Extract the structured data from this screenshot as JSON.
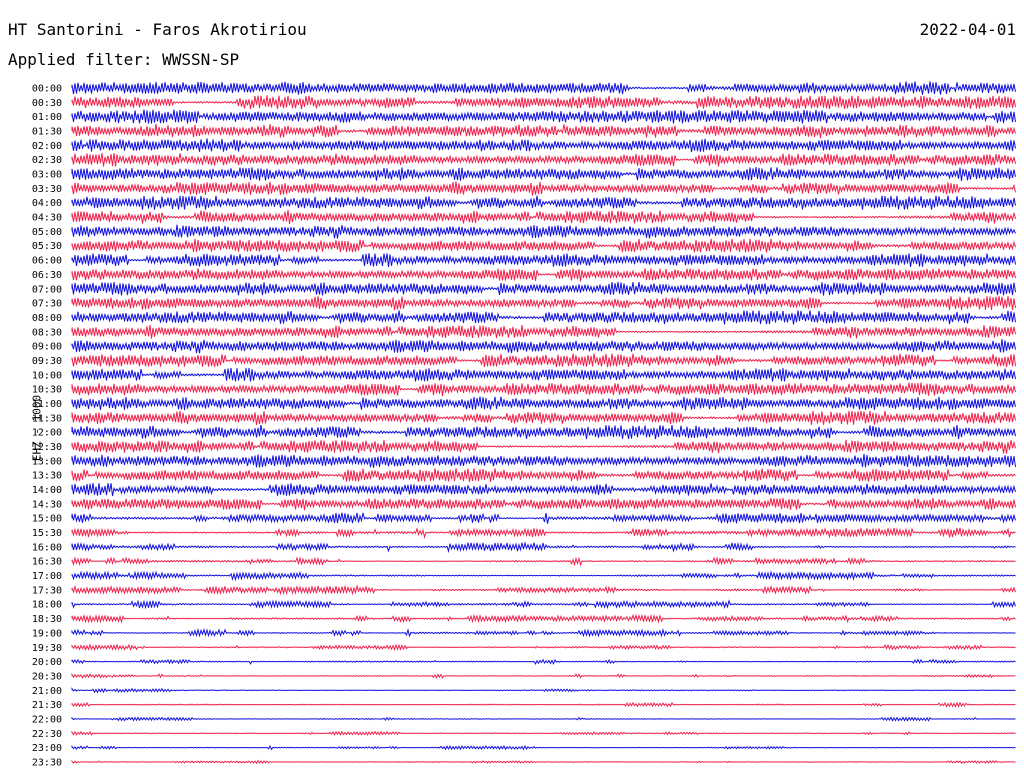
{
  "header": {
    "station": "HT Santorini - Faros Akrotiriou",
    "date": "2022-04-01",
    "filter": "Applied filter: WWSSN-SP",
    "channel": "EHZ - 1000"
  },
  "colors": {
    "even_rows": "#1010e0",
    "odd_rows": "#f0204a"
  },
  "chart_data": {
    "type": "line",
    "title": "HT Santorini - Faros Akrotiriou",
    "subtitle": "Applied filter: WWSSN-SP",
    "ylabel": "EHZ - 1000",
    "rows": [
      "00:00",
      "00:30",
      "01:00",
      "01:30",
      "02:00",
      "02:30",
      "03:00",
      "03:30",
      "04:00",
      "04:30",
      "05:00",
      "05:30",
      "06:00",
      "06:30",
      "07:00",
      "07:30",
      "08:00",
      "08:30",
      "09:00",
      "09:30",
      "10:00",
      "10:30",
      "11:00",
      "11:30",
      "12:00",
      "12:30",
      "13:00",
      "13:30",
      "14:00",
      "14:30",
      "15:00",
      "15:30",
      "16:00",
      "16:30",
      "17:00",
      "17:30",
      "18:00",
      "18:30",
      "19:00",
      "19:30",
      "20:00",
      "20:30",
      "21:00",
      "21:30",
      "22:00",
      "22:30",
      "23:00",
      "23:30"
    ],
    "row_amplitude": [
      1.0,
      1.0,
      1.0,
      1.0,
      1.0,
      1.0,
      1.0,
      1.0,
      1.0,
      1.0,
      1.0,
      1.0,
      1.0,
      1.0,
      1.0,
      1.0,
      1.0,
      1.0,
      1.0,
      1.0,
      1.0,
      1.0,
      1.0,
      1.0,
      1.0,
      1.0,
      1.0,
      1.0,
      0.95,
      0.9,
      0.8,
      0.75,
      0.6,
      0.55,
      0.55,
      0.55,
      0.55,
      0.5,
      0.45,
      0.4,
      0.35,
      0.3,
      0.3,
      0.3,
      0.28,
      0.28,
      0.25,
      0.22
    ],
    "row_burstiness": [
      0.1,
      0.1,
      0.1,
      0.1,
      0.1,
      0.1,
      0.1,
      0.1,
      0.1,
      0.1,
      0.1,
      0.1,
      0.1,
      0.1,
      0.1,
      0.1,
      0.1,
      0.1,
      0.1,
      0.1,
      0.1,
      0.1,
      0.1,
      0.1,
      0.1,
      0.1,
      0.1,
      0.1,
      0.2,
      0.25,
      0.35,
      0.4,
      0.55,
      0.6,
      0.6,
      0.6,
      0.6,
      0.65,
      0.65,
      0.7,
      0.75,
      0.8,
      0.8,
      0.8,
      0.8,
      0.8,
      0.8,
      0.8
    ]
  }
}
